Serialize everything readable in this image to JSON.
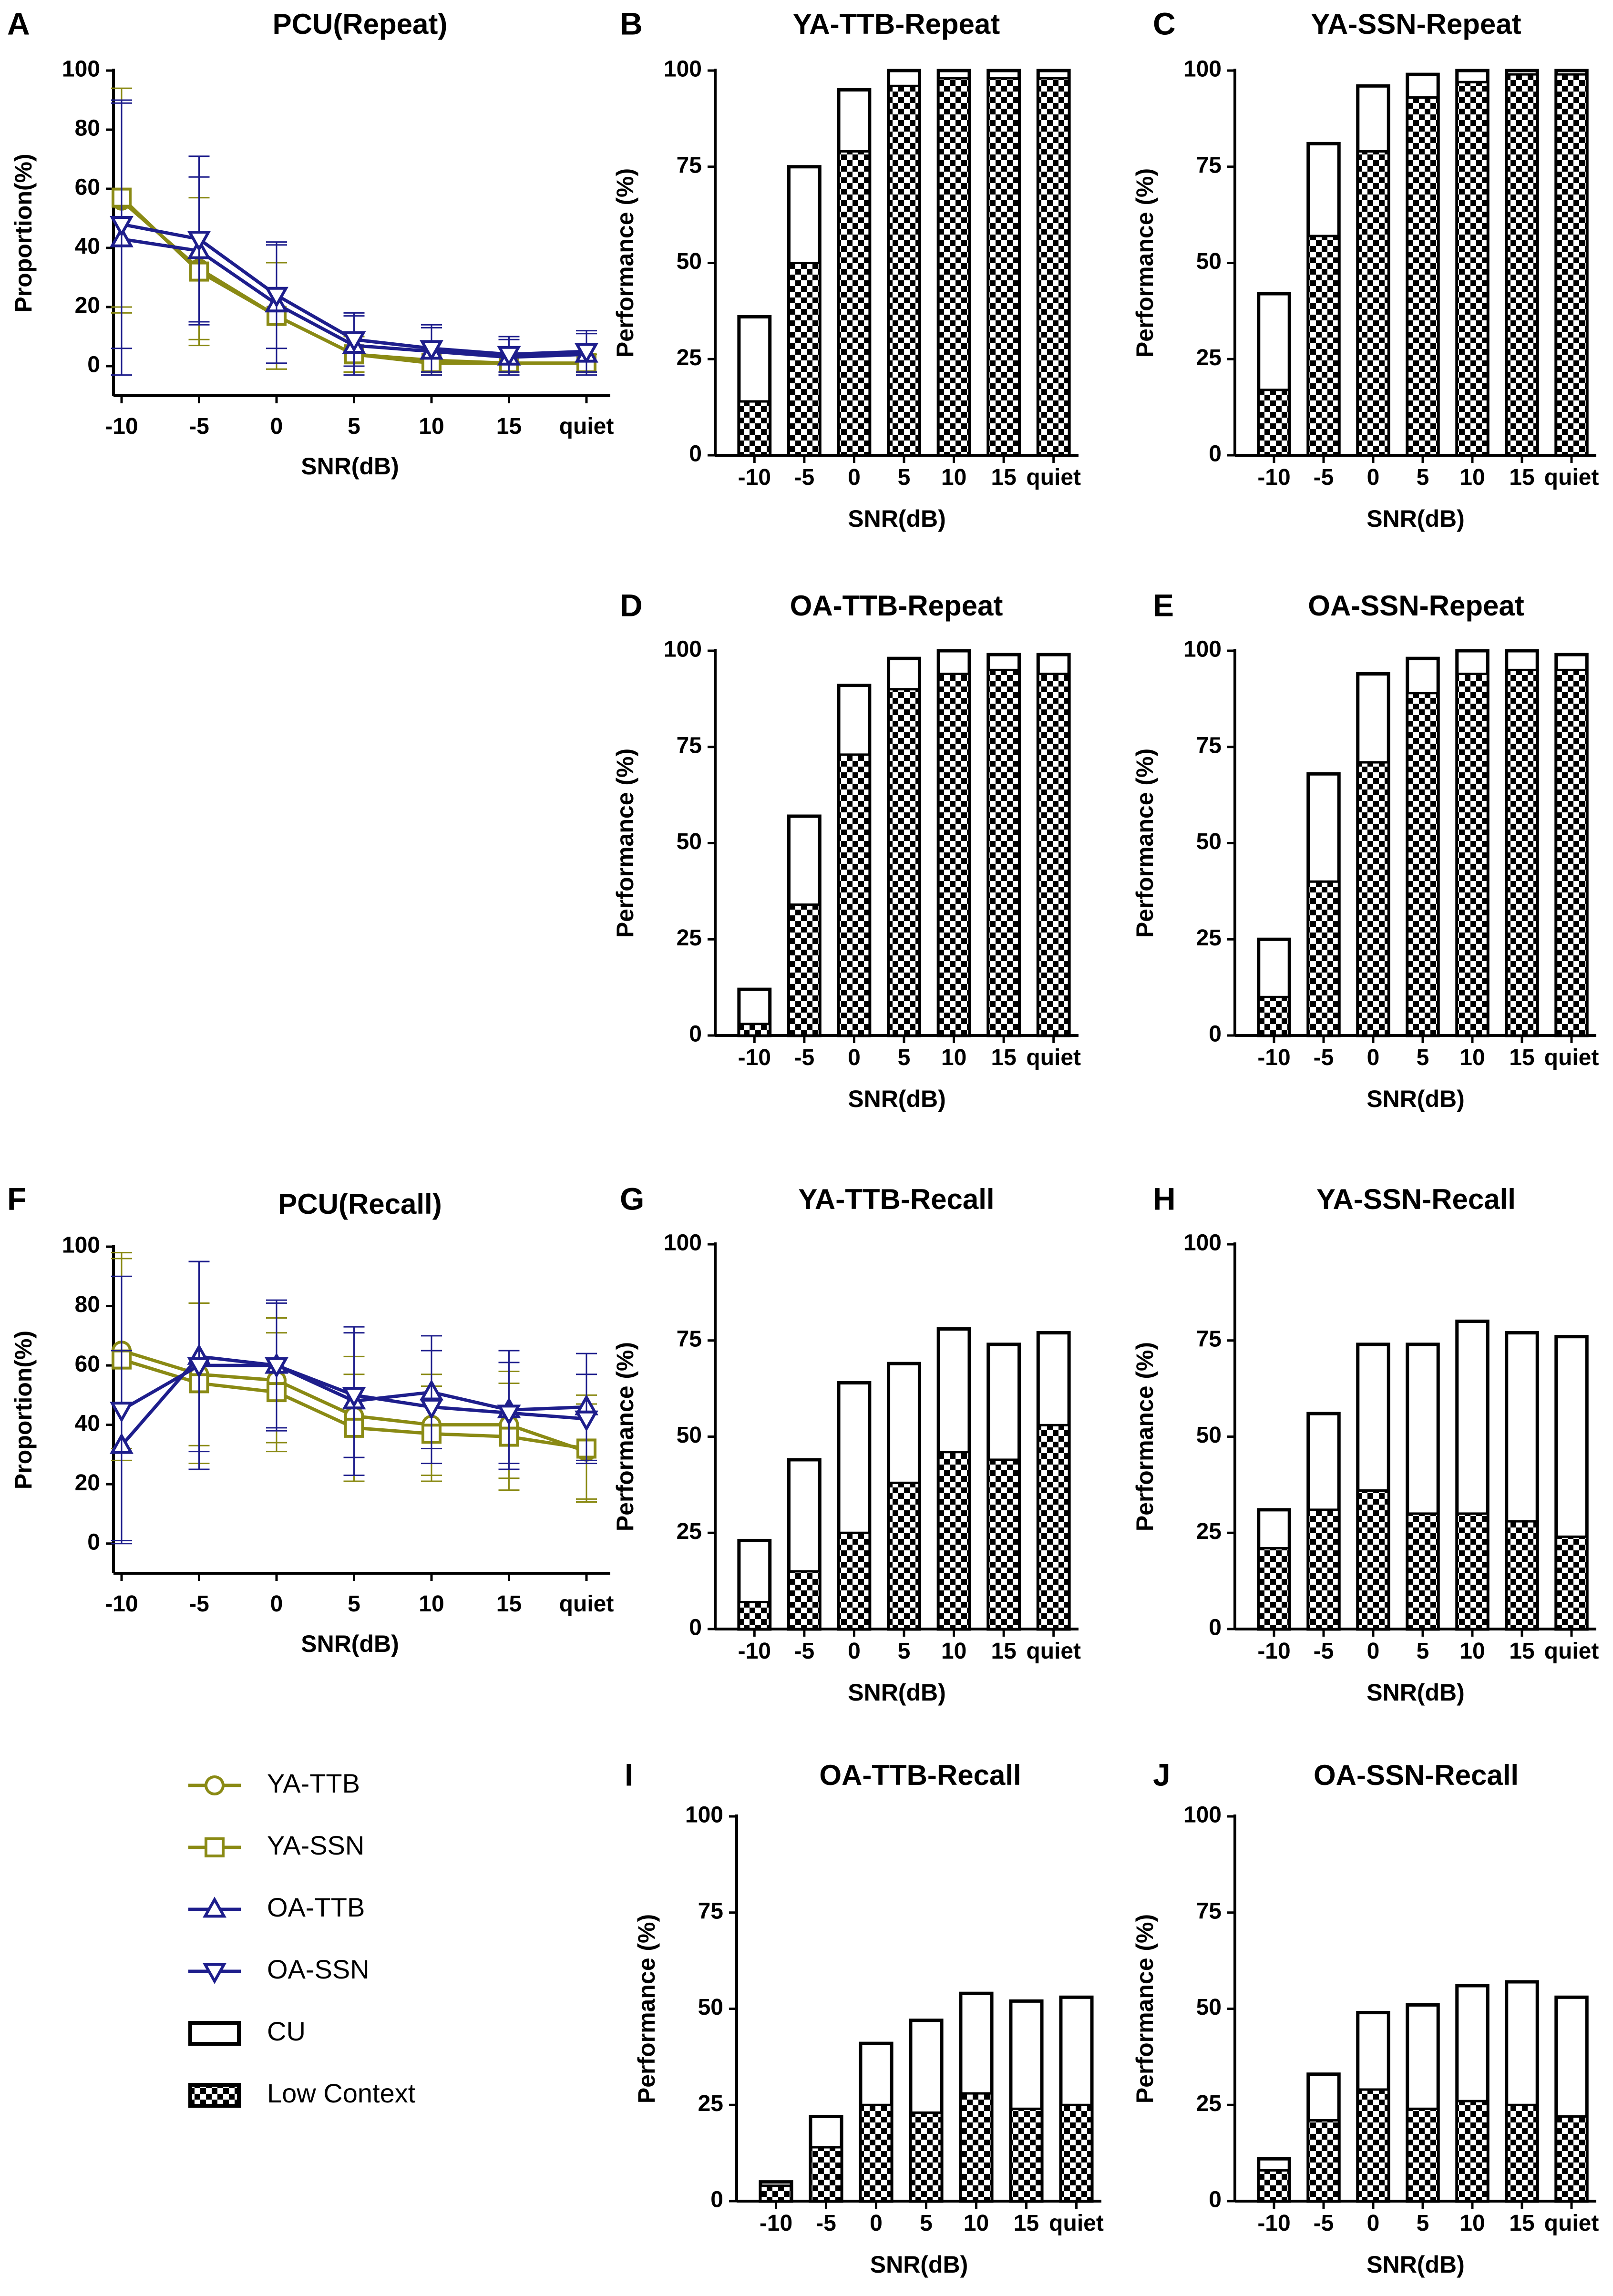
{
  "colors": {
    "olive": "#8a8a14",
    "navy": "#1e1e8c",
    "black": "#000000"
  },
  "legend": [
    {
      "label": "YA-TTB",
      "kind": "line",
      "marker": "circle",
      "color": "#8a8a14"
    },
    {
      "label": "YA-SSN",
      "kind": "line",
      "marker": "square",
      "color": "#8a8a14"
    },
    {
      "label": "OA-TTB",
      "kind": "line",
      "marker": "triangle-up",
      "color": "#1e1e8c"
    },
    {
      "label": "OA-SSN",
      "kind": "line",
      "marker": "triangle-down",
      "color": "#1e1e8c"
    },
    {
      "label": "CU",
      "kind": "box",
      "pattern": "open"
    },
    {
      "label": "Low Context",
      "kind": "box",
      "pattern": "checker"
    }
  ],
  "chart_data": [
    {
      "panel": "A",
      "type": "line",
      "title": "PCU(Repeat)",
      "xlabel": "SNR(dB)",
      "ylabel": "Proportion(%)",
      "categories": [
        "-10",
        "-5",
        "0",
        "5",
        "10",
        "15",
        "quiet"
      ],
      "ylim": [
        -10,
        100
      ],
      "yticks": [
        0,
        20,
        40,
        60,
        80,
        100
      ],
      "series": [
        {
          "name": "YA-TTB",
          "values": [
            56,
            33,
            17,
            4,
            2,
            1,
            1
          ],
          "err": [
            38,
            24,
            18,
            6,
            4,
            3,
            3
          ]
        },
        {
          "name": "YA-SSN",
          "values": [
            57,
            32,
            17,
            4,
            1,
            1,
            1
          ],
          "err": [
            37,
            25,
            18,
            6,
            4,
            3,
            3
          ]
        },
        {
          "name": "OA-TTB",
          "values": [
            43,
            39,
            21,
            7,
            5,
            3,
            4
          ],
          "err": [
            46,
            25,
            20,
            10,
            8,
            6,
            7
          ]
        },
        {
          "name": "OA-SSN",
          "values": [
            48,
            43,
            24,
            9,
            6,
            4,
            5
          ],
          "err": [
            42,
            28,
            18,
            9,
            8,
            6,
            7
          ]
        }
      ]
    },
    {
      "panel": "B",
      "type": "bar",
      "title": "YA-TTB-Repeat",
      "xlabel": "SNR(dB)",
      "ylabel": "Performance  (%)",
      "categories": [
        "-10",
        "-5",
        "0",
        "5",
        "10",
        "15",
        "quiet"
      ],
      "ylim": [
        0,
        100
      ],
      "yticks": [
        0,
        25,
        50,
        75,
        100
      ],
      "series": [
        {
          "name": "CU",
          "values": [
            36,
            75,
            95,
            100,
            100,
            100,
            100
          ]
        },
        {
          "name": "Low Context",
          "values": [
            14,
            50,
            79,
            96,
            98,
            98,
            98
          ]
        }
      ]
    },
    {
      "panel": "C",
      "type": "bar",
      "title": "YA-SSN-Repeat",
      "xlabel": "SNR(dB)",
      "ylabel": "Performance  (%)",
      "categories": [
        "-10",
        "-5",
        "0",
        "5",
        "10",
        "15",
        "quiet"
      ],
      "ylim": [
        0,
        100
      ],
      "yticks": [
        0,
        25,
        50,
        75,
        100
      ],
      "series": [
        {
          "name": "CU",
          "values": [
            42,
            81,
            96,
            99,
            100,
            100,
            100
          ]
        },
        {
          "name": "Low Context",
          "values": [
            17,
            57,
            79,
            93,
            97,
            99,
            99
          ]
        }
      ]
    },
    {
      "panel": "D",
      "type": "bar",
      "title": "OA-TTB-Repeat",
      "xlabel": "SNR(dB)",
      "ylabel": "Performance  (%)",
      "categories": [
        "-10",
        "-5",
        "0",
        "5",
        "10",
        "15",
        "quiet"
      ],
      "ylim": [
        0,
        100
      ],
      "yticks": [
        0,
        25,
        50,
        75,
        100
      ],
      "series": [
        {
          "name": "CU",
          "values": [
            12,
            57,
            91,
            98,
            100,
            99,
            99
          ]
        },
        {
          "name": "Low Context",
          "values": [
            3,
            34,
            73,
            90,
            94,
            95,
            94
          ]
        }
      ]
    },
    {
      "panel": "E",
      "type": "bar",
      "title": "OA-SSN-Repeat",
      "xlabel": "SNR(dB)",
      "ylabel": "Performance  (%)",
      "categories": [
        "-10",
        "-5",
        "0",
        "5",
        "10",
        "15",
        "quiet"
      ],
      "ylim": [
        0,
        100
      ],
      "yticks": [
        0,
        25,
        50,
        75,
        100
      ],
      "series": [
        {
          "name": "CU",
          "values": [
            25,
            68,
            94,
            98,
            100,
            100,
            99
          ]
        },
        {
          "name": "Low Context",
          "values": [
            10,
            40,
            71,
            89,
            94,
            95,
            95
          ]
        }
      ]
    },
    {
      "panel": "F",
      "type": "line",
      "title": "PCU(Recall)",
      "xlabel": "SNR(dB)",
      "ylabel": "Proportion(%)",
      "categories": [
        "-10",
        "-5",
        "0",
        "5",
        "10",
        "15",
        "quiet"
      ],
      "ylim": [
        -10,
        100
      ],
      "yticks": [
        0,
        20,
        40,
        60,
        80,
        100
      ],
      "series": [
        {
          "name": "YA-TTB",
          "values": [
            65,
            57,
            55,
            43,
            40,
            40,
            31
          ],
          "err": [
            33,
            24,
            21,
            20,
            17,
            18,
            16
          ]
        },
        {
          "name": "YA-SSN",
          "values": [
            62,
            54,
            51,
            39,
            37,
            36,
            32
          ],
          "err": [
            34,
            27,
            20,
            18,
            16,
            18,
            18
          ]
        },
        {
          "name": "OA-TTB",
          "values": [
            33,
            63,
            60,
            48,
            51,
            45,
            46
          ],
          "err": [
            32,
            32,
            22,
            25,
            19,
            20,
            18
          ]
        },
        {
          "name": "OA-SSN",
          "values": [
            45,
            60,
            60,
            50,
            46,
            44,
            42
          ],
          "err": [
            45,
            35,
            21,
            21,
            19,
            17,
            15
          ]
        }
      ]
    },
    {
      "panel": "G",
      "type": "bar",
      "title": "YA-TTB-Recall",
      "xlabel": "SNR(dB)",
      "ylabel": "Performance  (%)",
      "categories": [
        "-10",
        "-5",
        "0",
        "5",
        "10",
        "15",
        "quiet"
      ],
      "ylim": [
        0,
        100
      ],
      "yticks": [
        0,
        25,
        50,
        75,
        100
      ],
      "series": [
        {
          "name": "CU",
          "values": [
            23,
            44,
            64,
            69,
            78,
            74,
            77
          ]
        },
        {
          "name": "Low Context",
          "values": [
            7,
            15,
            25,
            38,
            46,
            44,
            53
          ]
        }
      ]
    },
    {
      "panel": "H",
      "type": "bar",
      "title": "YA-SSN-Recall",
      "xlabel": "SNR(dB)",
      "ylabel": "Performance  (%)",
      "categories": [
        "-10",
        "-5",
        "0",
        "5",
        "10",
        "15",
        "quiet"
      ],
      "ylim": [
        0,
        100
      ],
      "yticks": [
        0,
        25,
        50,
        75,
        100
      ],
      "series": [
        {
          "name": "CU",
          "values": [
            31,
            56,
            74,
            74,
            80,
            77,
            76
          ]
        },
        {
          "name": "Low Context",
          "values": [
            21,
            31,
            36,
            30,
            30,
            28,
            24
          ]
        }
      ]
    },
    {
      "panel": "I",
      "type": "bar",
      "title": "OA-TTB-Recall",
      "xlabel": "SNR(dB)",
      "ylabel": "Performance  (%)",
      "categories": [
        "-10",
        "-5",
        "0",
        "5",
        "10",
        "15",
        "quiet"
      ],
      "ylim": [
        0,
        100
      ],
      "yticks": [
        0,
        25,
        50,
        75,
        100
      ],
      "series": [
        {
          "name": "CU",
          "values": [
            5,
            22,
            41,
            47,
            54,
            52,
            53
          ]
        },
        {
          "name": "Low Context",
          "values": [
            4,
            14,
            25,
            23,
            28,
            24,
            25
          ]
        }
      ]
    },
    {
      "panel": "J",
      "type": "bar",
      "title": "OA-SSN-Recall",
      "xlabel": "SNR(dB)",
      "ylabel": "Performance  (%)",
      "categories": [
        "-10",
        "-5",
        "0",
        "5",
        "10",
        "15",
        "quiet"
      ],
      "ylim": [
        0,
        100
      ],
      "yticks": [
        0,
        25,
        50,
        75,
        100
      ],
      "series": [
        {
          "name": "CU",
          "values": [
            11,
            33,
            49,
            51,
            56,
            57,
            53
          ]
        },
        {
          "name": "Low Context",
          "values": [
            8,
            21,
            29,
            24,
            26,
            25,
            22
          ]
        }
      ]
    }
  ]
}
